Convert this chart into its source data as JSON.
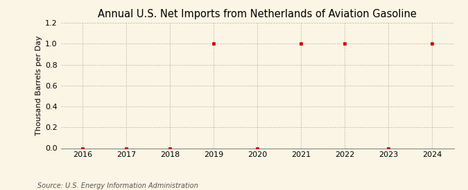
{
  "title": "Annual U.S. Net Imports from Netherlands of Aviation Gasoline",
  "ylabel": "Thousand Barrels per Day",
  "source_text": "Source: U.S. Energy Information Administration",
  "years": [
    2016,
    2017,
    2018,
    2019,
    2020,
    2021,
    2022,
    2023,
    2024
  ],
  "values": [
    0.0,
    0.0,
    0.0,
    1.0,
    0.0,
    1.0,
    1.0,
    0.0,
    1.0
  ],
  "xlim": [
    2015.5,
    2024.5
  ],
  "ylim": [
    0.0,
    1.2
  ],
  "yticks": [
    0.0,
    0.2,
    0.4,
    0.6,
    0.8,
    1.0,
    1.2
  ],
  "xticks": [
    2016,
    2017,
    2018,
    2019,
    2020,
    2021,
    2022,
    2023,
    2024
  ],
  "marker_color": "#cc0000",
  "marker": "s",
  "marker_size": 3,
  "grid_color": "#aaaaaa",
  "background_color": "#faf5e4",
  "title_fontsize": 10.5,
  "label_fontsize": 8,
  "tick_fontsize": 8,
  "source_fontsize": 7
}
